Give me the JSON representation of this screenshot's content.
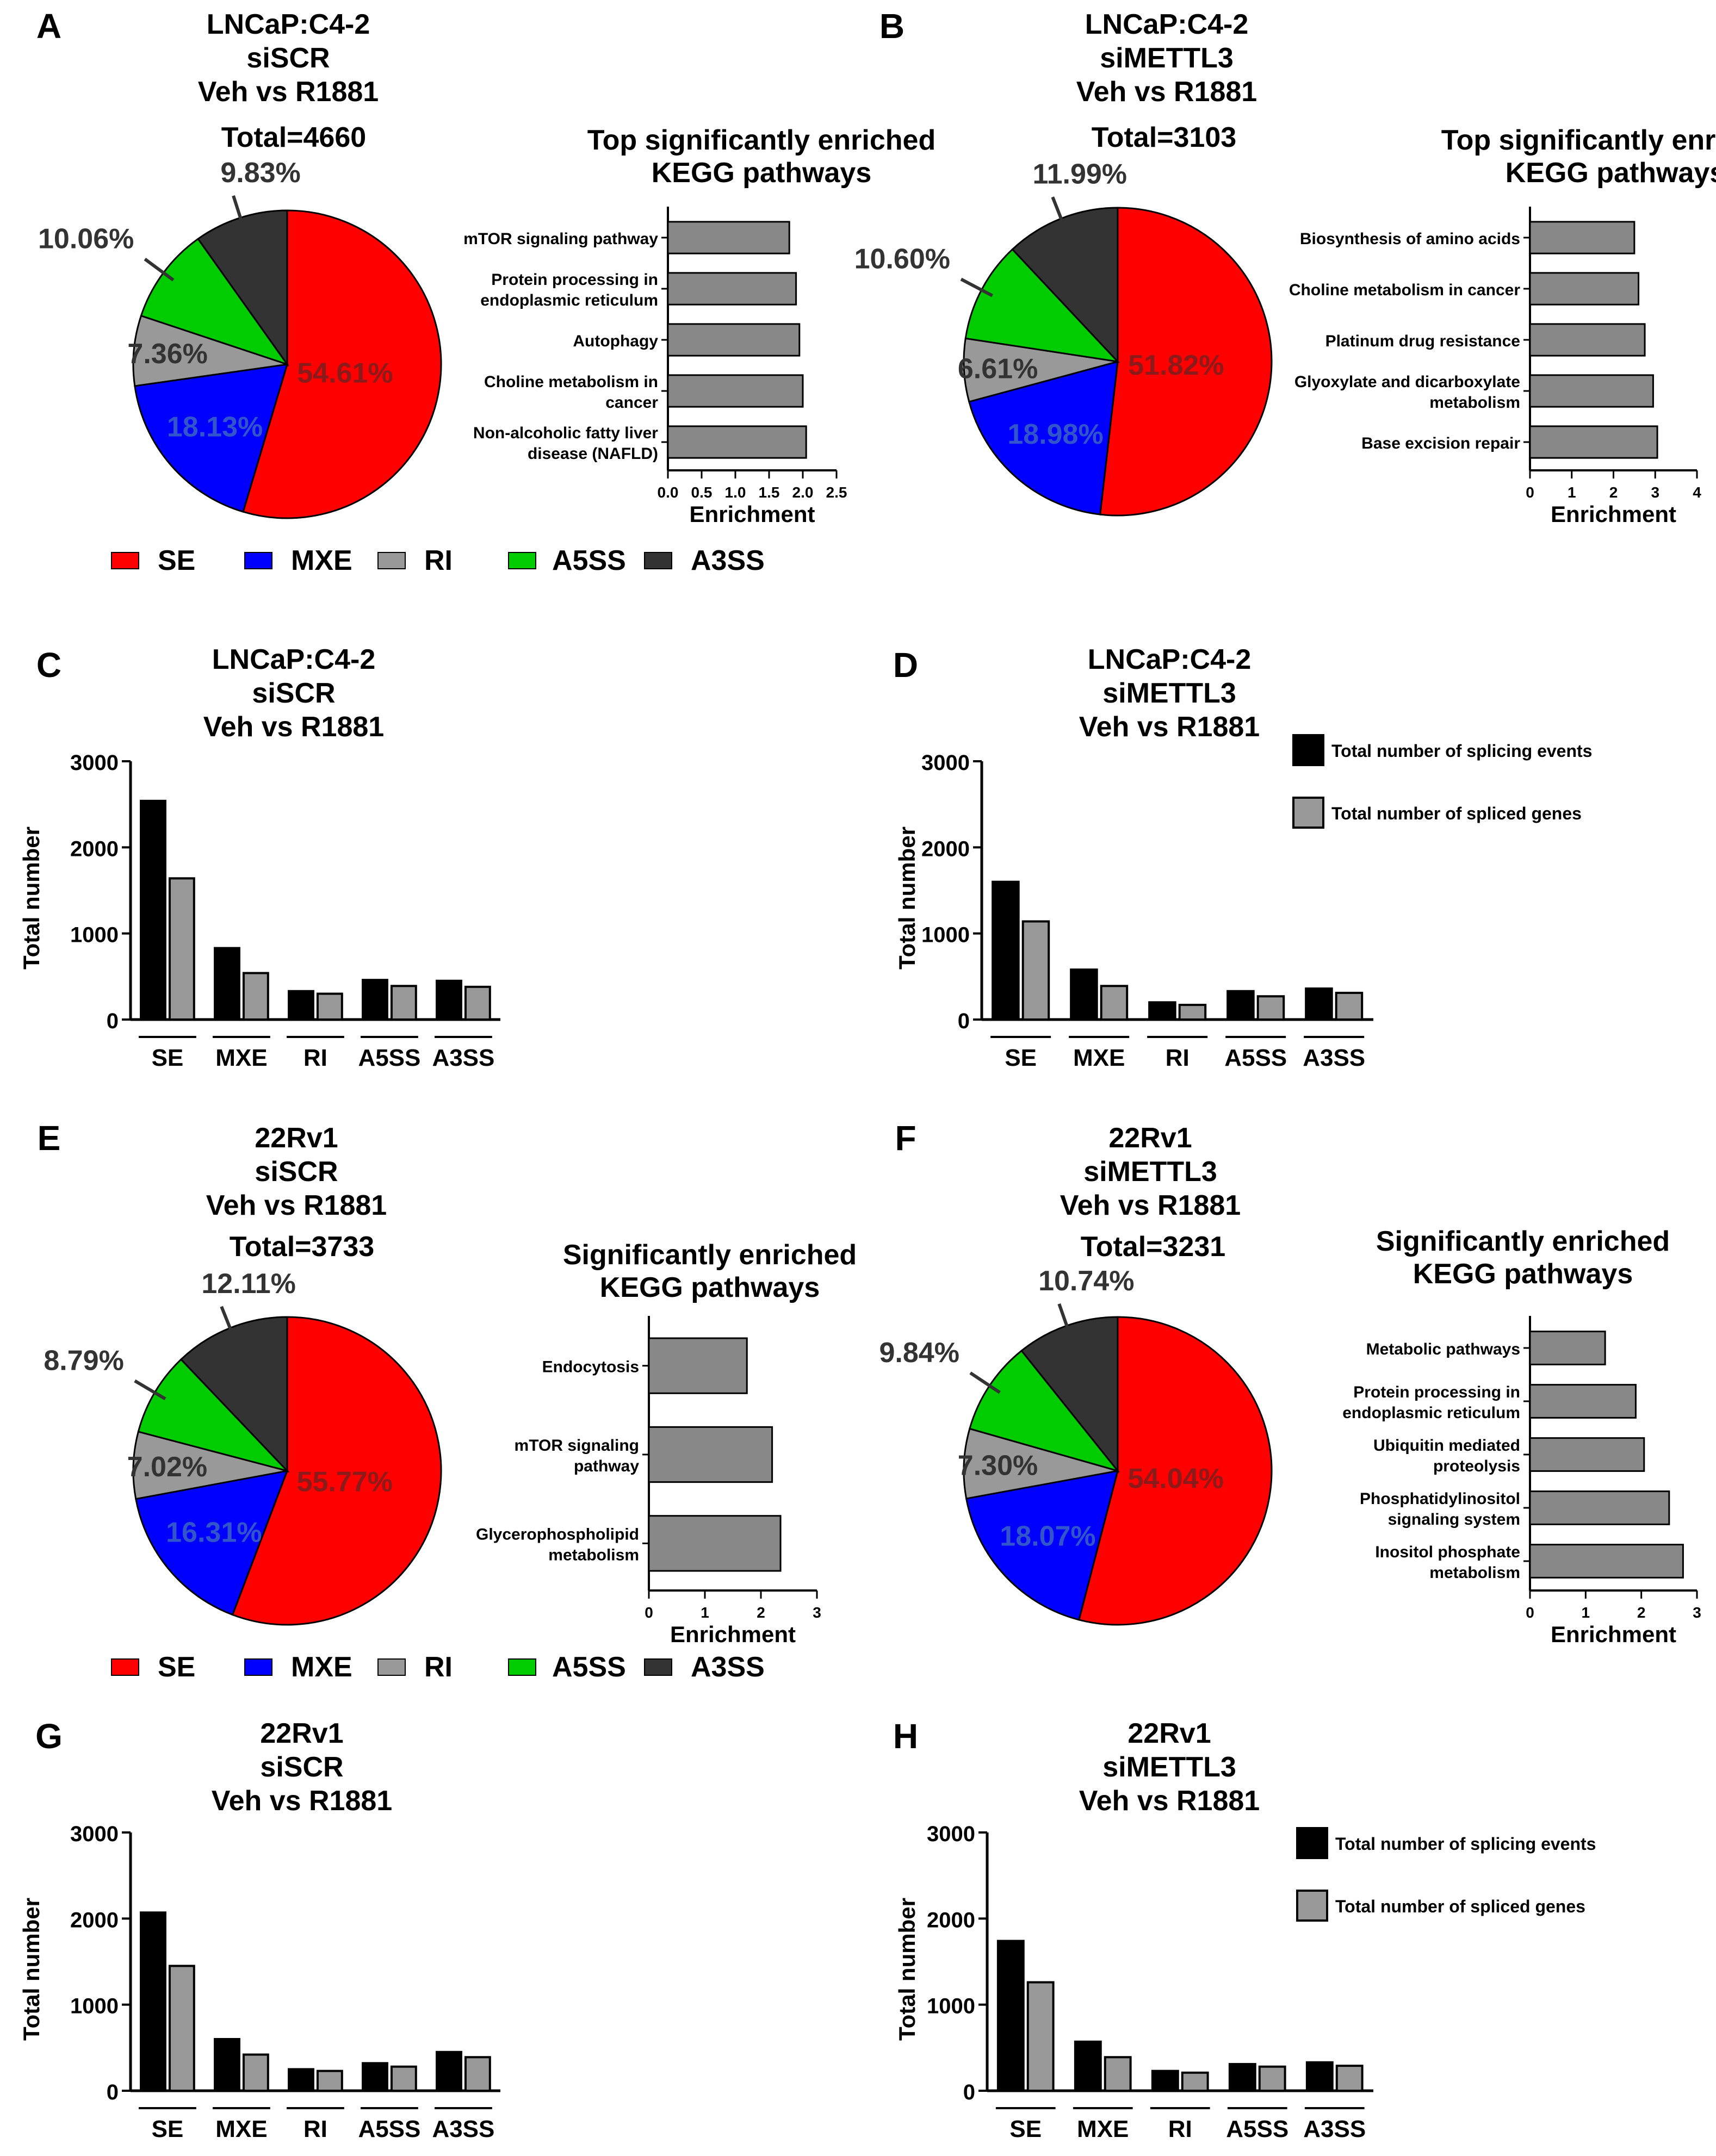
{
  "colors": {
    "SE": "#ff0000",
    "MXE": "#0000ff",
    "RI": "#999999",
    "A5SS": "#00cc00",
    "A3SS": "#333333",
    "bar_black": "#000000",
    "bar_gray": "#999999",
    "kegg_bar": "#888888"
  },
  "panels": [
    {
      "letter": "A",
      "title": [
        "LNCaP:C4-2",
        "siSCR",
        "Veh vs R1881"
      ],
      "total": "Total=4660",
      "pie": {
        "slices": [
          {
            "key": "SE",
            "value": 54.61,
            "label": "54.61%"
          },
          {
            "key": "MXE",
            "value": 18.13,
            "label": "18.13%"
          },
          {
            "key": "RI",
            "value": 7.36,
            "label": "7.36%"
          },
          {
            "key": "A5SS",
            "value": 10.06,
            "label": "10.06%"
          },
          {
            "key": "A3SS",
            "value": 9.83,
            "label": "9.83%"
          }
        ]
      },
      "kegg": {
        "title": [
          "Top significantly enriched",
          "KEGG pathways"
        ],
        "xlabel": "Enrichment",
        "xlim": [
          0,
          2.5
        ],
        "ticks": [
          "0.0",
          "0.5",
          "1.0",
          "1.5",
          "2.0",
          "2.5"
        ],
        "bars": [
          {
            "label": [
              "mTOR signaling pathway"
            ],
            "value": 1.8
          },
          {
            "label": [
              "Protein processing in",
              "endoplasmic reticulum"
            ],
            "value": 1.9
          },
          {
            "label": [
              "Autophagy"
            ],
            "value": 1.95
          },
          {
            "label": [
              "Choline metabolism in",
              "cancer"
            ],
            "value": 2.0
          },
          {
            "label": [
              "Non-alcoholic fatty liver",
              "disease (NAFLD)"
            ],
            "value": 2.05
          }
        ]
      }
    },
    {
      "letter": "B",
      "title": [
        "LNCaP:C4-2",
        "siMETTL3",
        "Veh vs R1881"
      ],
      "total": "Total=3103",
      "pie": {
        "slices": [
          {
            "key": "SE",
            "value": 51.82,
            "label": "51.82%"
          },
          {
            "key": "MXE",
            "value": 18.98,
            "label": "18.98%"
          },
          {
            "key": "RI",
            "value": 6.61,
            "label": "6.61%"
          },
          {
            "key": "A5SS",
            "value": 10.6,
            "label": "10.60%"
          },
          {
            "key": "A3SS",
            "value": 11.99,
            "label": "11.99%"
          }
        ]
      },
      "kegg": {
        "title": [
          "Top significantly enriched",
          "KEGG pathways"
        ],
        "xlabel": "Enrichment",
        "xlim": [
          0,
          4
        ],
        "ticks": [
          "0",
          "1",
          "2",
          "3",
          "4"
        ],
        "bars": [
          {
            "label": [
              "Biosynthesis of amino acids"
            ],
            "value": 2.5
          },
          {
            "label": [
              "Choline metabolism in cancer"
            ],
            "value": 2.6
          },
          {
            "label": [
              "Platinum drug resistance"
            ],
            "value": 2.75
          },
          {
            "label": [
              "Glyoxylate and dicarboxylate",
              "metabolism"
            ],
            "value": 2.95
          },
          {
            "label": [
              "Base excision repair"
            ],
            "value": 3.05
          }
        ]
      }
    },
    {
      "letter": "E",
      "title": [
        "22Rv1",
        "siSCR",
        "Veh vs R1881"
      ],
      "total": "Total=3733",
      "pie": {
        "slices": [
          {
            "key": "SE",
            "value": 55.77,
            "label": "55.77%"
          },
          {
            "key": "MXE",
            "value": 16.31,
            "label": "16.31%"
          },
          {
            "key": "RI",
            "value": 7.02,
            "label": "7.02%"
          },
          {
            "key": "A5SS",
            "value": 8.79,
            "label": "8.79%"
          },
          {
            "key": "A3SS",
            "value": 12.11,
            "label": "12.11%"
          }
        ]
      },
      "kegg": {
        "title": [
          "Significantly enriched",
          "KEGG pathways"
        ],
        "xlabel": "Enrichment",
        "xlim": [
          0,
          3
        ],
        "ticks": [
          "0",
          "1",
          "2",
          "3"
        ],
        "bars": [
          {
            "label": [
              "Endocytosis"
            ],
            "value": 1.75
          },
          {
            "label": [
              "mTOR signaling",
              "pathway"
            ],
            "value": 2.2
          },
          {
            "label": [
              "Glycerophospholipid",
              "metabolism"
            ],
            "value": 2.35
          }
        ]
      }
    },
    {
      "letter": "F",
      "title": [
        "22Rv1",
        "siMETTL3",
        "Veh vs R1881"
      ],
      "total": "Total=3231",
      "pie": {
        "slices": [
          {
            "key": "SE",
            "value": 54.04,
            "label": "54.04%"
          },
          {
            "key": "MXE",
            "value": 18.07,
            "label": "18.07%"
          },
          {
            "key": "RI",
            "value": 7.3,
            "label": "7.30%"
          },
          {
            "key": "A5SS",
            "value": 9.84,
            "label": "9.84%"
          },
          {
            "key": "A3SS",
            "value": 10.74,
            "label": "10.74%"
          }
        ]
      },
      "kegg": {
        "title": [
          "Significantly enriched",
          "KEGG pathways"
        ],
        "xlabel": "Enrichment",
        "xlim": [
          0,
          3
        ],
        "ticks": [
          "0",
          "1",
          "2",
          "3"
        ],
        "bars": [
          {
            "label": [
              "Metabolic pathways"
            ],
            "value": 1.35
          },
          {
            "label": [
              "Protein processing in",
              "endoplasmic reticulum"
            ],
            "value": 1.9
          },
          {
            "label": [
              "Ubiquitin mediated",
              "proteolysis"
            ],
            "value": 2.05
          },
          {
            "label": [
              "Phosphatidylinositol",
              "signaling system"
            ],
            "value": 2.5
          },
          {
            "label": [
              "Inositol phosphate",
              "metabolism"
            ],
            "value": 2.75
          }
        ]
      }
    }
  ],
  "legend_pie": [
    "SE",
    "MXE",
    "RI",
    "A5SS",
    "A3SS"
  ],
  "bar_panels": [
    {
      "letter": "C",
      "title": [
        "LNCaP:C4-2",
        "siSCR",
        "Veh vs R1881"
      ],
      "ylabel": "Total number",
      "ylim": [
        0,
        3000
      ],
      "yticks": [
        "0",
        "1000",
        "2000",
        "3000"
      ],
      "categories": [
        "SE",
        "MXE",
        "RI",
        "A5SS",
        "A3SS"
      ],
      "series": [
        {
          "name": "Total number of splicing events",
          "values": [
            2540,
            830,
            330,
            460,
            450
          ]
        },
        {
          "name": "Total number of spliced genes",
          "values": [
            1640,
            540,
            300,
            390,
            380
          ]
        }
      ],
      "show_legend": false
    },
    {
      "letter": "D",
      "title": [
        "LNCaP:C4-2",
        "siMETTL3",
        "Veh vs R1881"
      ],
      "ylabel": "Total number",
      "ylim": [
        0,
        3000
      ],
      "yticks": [
        "0",
        "1000",
        "2000",
        "3000"
      ],
      "categories": [
        "SE",
        "MXE",
        "RI",
        "A5SS",
        "A3SS"
      ],
      "series": [
        {
          "name": "Total number of splicing events",
          "values": [
            1600,
            580,
            200,
            330,
            360
          ]
        },
        {
          "name": "Total number of spliced genes",
          "values": [
            1140,
            390,
            170,
            270,
            310
          ]
        }
      ],
      "show_legend": true
    },
    {
      "letter": "G",
      "title": [
        "22Rv1",
        "siSCR",
        "Veh vs R1881"
      ],
      "ylabel": "Total number",
      "ylim": [
        0,
        3000
      ],
      "yticks": [
        "0",
        "1000",
        "2000",
        "3000"
      ],
      "categories": [
        "SE",
        "MXE",
        "RI",
        "A5SS",
        "A3SS"
      ],
      "series": [
        {
          "name": "Total number of splicing events",
          "values": [
            2070,
            600,
            250,
            320,
            450
          ]
        },
        {
          "name": "Total number of spliced genes",
          "values": [
            1450,
            420,
            230,
            280,
            390
          ]
        }
      ],
      "show_legend": false
    },
    {
      "letter": "H",
      "title": [
        "22Rv1",
        "siMETTL3",
        "Veh vs R1881"
      ],
      "ylabel": "Total number",
      "ylim": [
        0,
        3000
      ],
      "yticks": [
        "0",
        "1000",
        "2000",
        "3000"
      ],
      "categories": [
        "SE",
        "MXE",
        "RI",
        "A5SS",
        "A3SS"
      ],
      "series": [
        {
          "name": "Total number of splicing events",
          "values": [
            1740,
            570,
            230,
            310,
            330
          ]
        },
        {
          "name": "Total number of spliced genes",
          "values": [
            1260,
            390,
            210,
            280,
            290
          ]
        }
      ],
      "show_legend": true
    }
  ]
}
